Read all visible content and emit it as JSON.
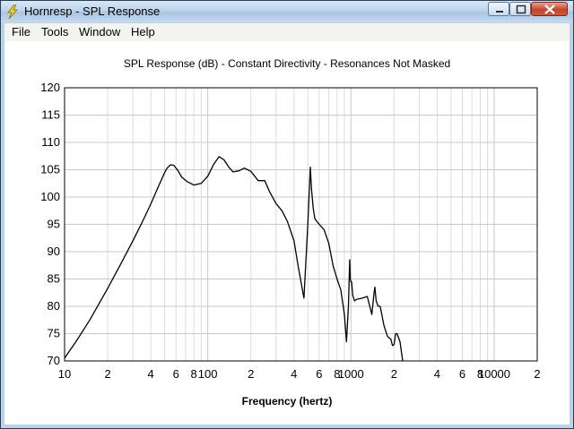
{
  "window": {
    "title": "Hornresp - SPL Response",
    "app_icon": "lightning-bolt-icon",
    "controls": [
      "minimize-icon",
      "maximize-icon",
      "close-icon"
    ]
  },
  "menu": [
    "File",
    "Tools",
    "Window",
    "Help"
  ],
  "chart_data": {
    "type": "line",
    "title": "SPL Response (dB) - Constant Directivity - Resonances Not Masked",
    "xlabel": "Frequency (hertz)",
    "ylabel": "",
    "xscale": "log",
    "xlim": [
      10,
      20000
    ],
    "ylim": [
      70,
      120
    ],
    "xtick_labels": [
      "10",
      "2",
      "4",
      "6",
      "8",
      "100",
      "2",
      "4",
      "6",
      "8",
      "1000",
      "2",
      "4",
      "6",
      "8",
      "10000",
      "2"
    ],
    "ytick_labels": [
      "120",
      "115",
      "110",
      "105",
      "100",
      "95",
      "90",
      "85",
      "80",
      "75",
      "70"
    ],
    "grid": true,
    "line_color": "#000000",
    "series": [
      {
        "x": [
          10,
          12,
          15,
          20,
          25,
          30,
          35,
          40,
          45,
          50,
          52,
          55,
          58,
          62,
          66,
          72,
          80,
          90,
          100,
          110,
          120,
          130,
          140,
          150,
          165,
          180,
          200,
          225,
          250,
          270,
          300,
          330,
          360,
          400,
          430,
          470,
          500,
          520,
          530,
          545,
          560,
          600,
          650,
          700,
          750,
          800,
          850,
          900,
          930,
          960,
          980,
          990,
          1000,
          1010,
          1030,
          1060,
          1100,
          1200,
          1300,
          1400,
          1450,
          1470,
          1500,
          1550,
          1600,
          1700,
          1800,
          1900,
          1950,
          2000,
          2050,
          2100,
          2200,
          2300
        ],
        "y": [
          70.5,
          73.5,
          77.5,
          83.3,
          88.0,
          92.0,
          95.5,
          98.7,
          101.8,
          104.5,
          105.3,
          105.9,
          105.8,
          104.8,
          103.6,
          102.8,
          102.2,
          102.5,
          103.8,
          106.0,
          107.4,
          106.8,
          105.5,
          104.6,
          104.8,
          105.3,
          104.7,
          103.0,
          103.0,
          101.0,
          98.8,
          97.5,
          95.5,
          92.0,
          87.0,
          81.5,
          95.0,
          105.5,
          101.5,
          98.0,
          96.0,
          95.0,
          94.0,
          91.5,
          87.5,
          85.0,
          83.0,
          78.5,
          73.5,
          80.0,
          88.5,
          85.0,
          84.5,
          84.5,
          82.0,
          81.0,
          81.3,
          81.5,
          81.8,
          78.5,
          82.5,
          83.5,
          81.0,
          80.0,
          80.0,
          76.5,
          74.5,
          74.0,
          72.8,
          73.0,
          75.0,
          75.0,
          73.5,
          70.0
        ]
      }
    ]
  }
}
